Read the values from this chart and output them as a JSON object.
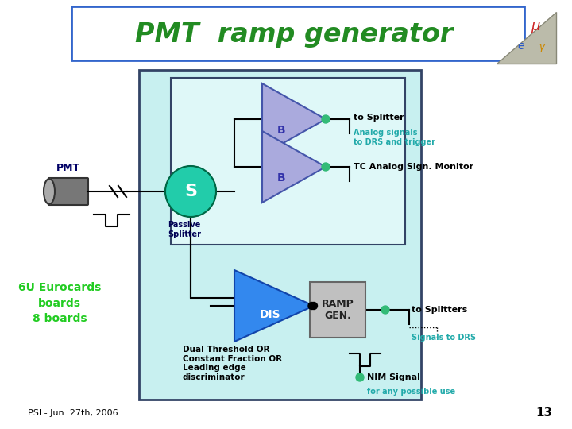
{
  "title": "PMT  ramp generator",
  "title_color": "#228B22",
  "bg_color": "#ffffff",
  "box_bg": "#c8f0f0",
  "box_bg2": "#dff8f8",
  "box_border": "#2255aa",
  "pmt_label": "PMT",
  "splitter_label": "S",
  "splitter_color": "#22ccaa",
  "passive_splitter_text": "Passive\nSplitter",
  "buffer_color": "#aaaadd",
  "buffer_b_label": "B",
  "disc_color": "#3388ee",
  "disc_label": "DIS",
  "ramp_box_color": "#c0c0c0",
  "ramp_label": "RAMP\nGEN.",
  "to_splitter_text": "to Splitter",
  "analog_signals_text": "Analog signals\nto DRS and trigger",
  "tc_analog_text": "TC Analog Sign. Monitor",
  "to_splitters_text": "to Splitters",
  "signals_to_drs_text": "Signals to DRS",
  "nim_signal_text": "NIM Signal",
  "nim_use_text": "for any possible use",
  "dual_threshold_text": "Dual Threshold OR\nConstant Fraction OR\nLeading edge\ndiscriminator",
  "eurocards_text": "6U Eurocards\nboards\n8 boards",
  "psi_text": "PSI - Jun. 27th, 2006",
  "page_num": "13",
  "green_dot_color": "#33bb77",
  "teal_text_color": "#22aaaa",
  "signal_line_color": "#000000"
}
